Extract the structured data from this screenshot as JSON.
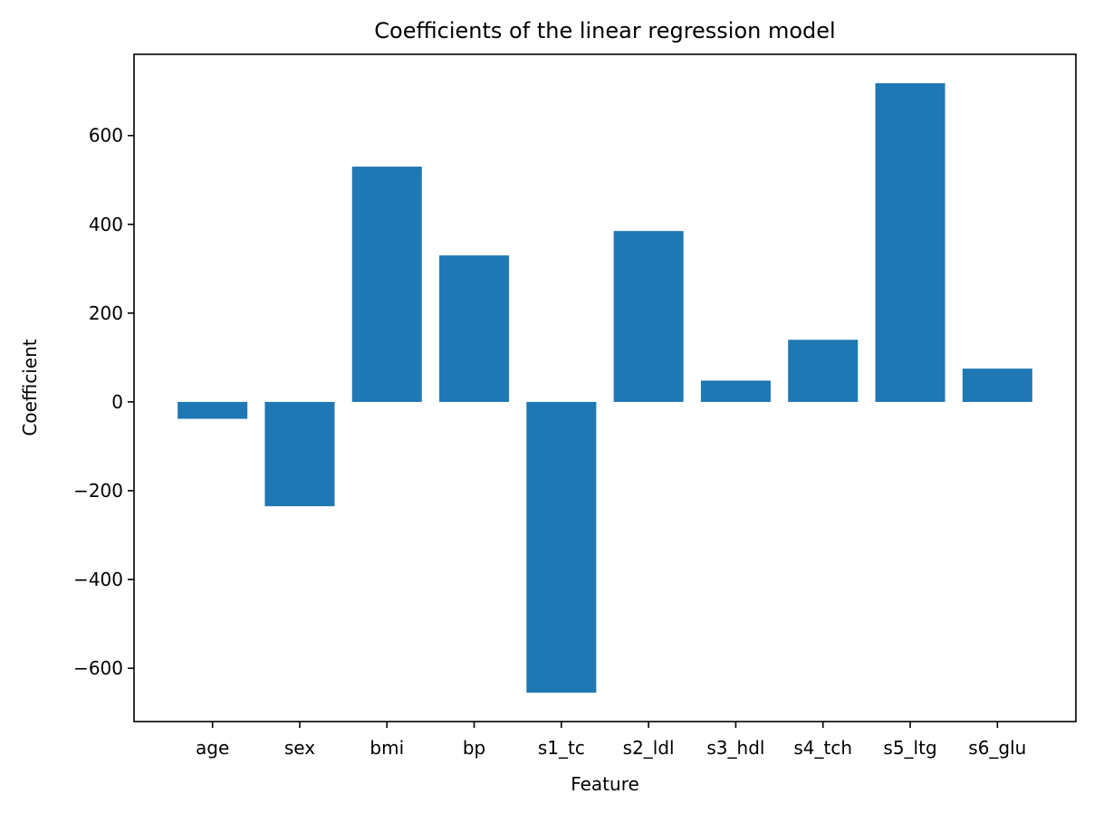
{
  "chart_data": {
    "type": "bar",
    "title": "Coefficients of the linear regression model",
    "xlabel": "Feature",
    "ylabel": "Coefficient",
    "categories": [
      "age",
      "sex",
      "bmi",
      "bp",
      "s1_tc",
      "s2_ldl",
      "s3_hdl",
      "s4_tch",
      "s5_ltg",
      "s6_glu"
    ],
    "values": [
      -38,
      -235,
      530,
      330,
      -655,
      385,
      48,
      140,
      718,
      75
    ],
    "ylim": [
      -720,
      783
    ],
    "yticks": [
      -600,
      -400,
      -200,
      0,
      200,
      400,
      600
    ],
    "ytick_labels": [
      "−600",
      "−400",
      "−200",
      "0",
      "200",
      "400",
      "600"
    ],
    "bar_color": "#1f77b4",
    "grid": false,
    "legend": "none"
  }
}
